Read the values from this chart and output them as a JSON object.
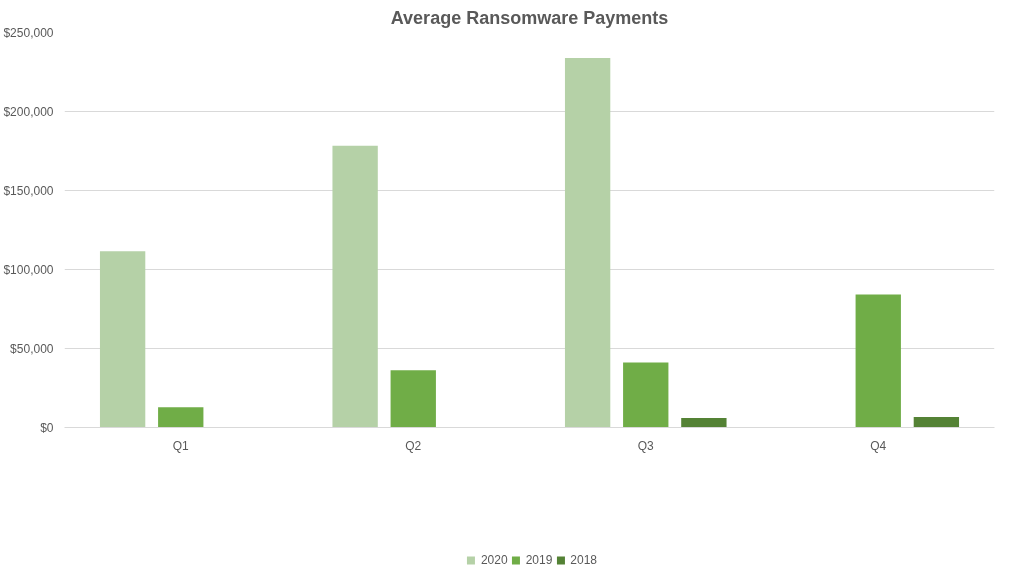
{
  "chart_data": {
    "type": "bar",
    "title": "Average Ransomware Payments",
    "categories": [
      "Q1",
      "Q2",
      "Q3",
      "Q4"
    ],
    "series": [
      {
        "name": "2020",
        "color": "#b5d1a7",
        "values": [
          111600,
          178300,
          233800,
          null
        ]
      },
      {
        "name": "2019",
        "color": "#70ad47",
        "values": [
          12800,
          36300,
          41200,
          84100
        ]
      },
      {
        "name": "2018",
        "color": "#548235",
        "values": [
          null,
          null,
          6000,
          6700
        ]
      }
    ],
    "ylim": [
      0,
      250000
    ],
    "yticks": [
      {
        "value": 0,
        "label": "$0"
      },
      {
        "value": 50000,
        "label": "$50,000"
      },
      {
        "value": 100000,
        "label": "$100,000"
      },
      {
        "value": 150000,
        "label": "$150,000"
      },
      {
        "value": 200000,
        "label": "$200,000"
      },
      {
        "value": 250000,
        "label": "$250,000"
      }
    ],
    "grid": "y",
    "legend": "bottom"
  }
}
